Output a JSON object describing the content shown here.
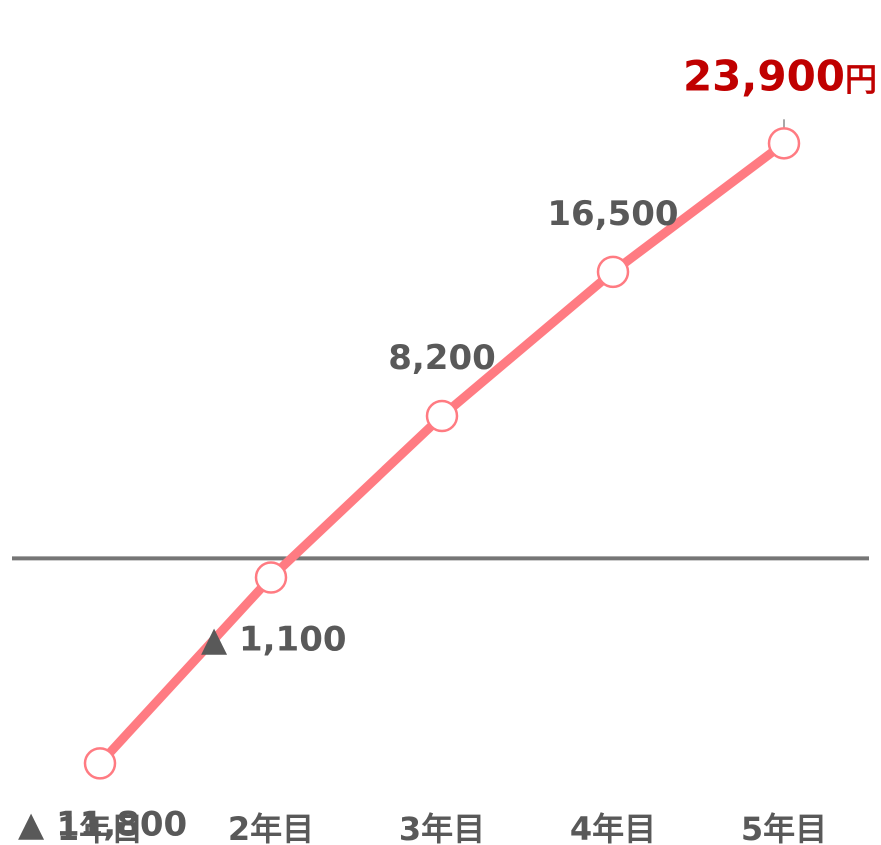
{
  "chart_data": {
    "type": "line",
    "categories": [
      "1年目",
      "2年目",
      "3年目",
      "4年目",
      "5年目"
    ],
    "values": [
      -11800,
      -1100,
      8200,
      16500,
      23900
    ],
    "data_labels": [
      "▲ 11,800",
      "▲ 1,100",
      "8,200",
      "16,500",
      "23,900"
    ],
    "final_unit": "円",
    "ylim": [
      -16500,
      31000
    ],
    "zero_line": true,
    "grid": false,
    "title": "",
    "xlabel": "",
    "ylabel": ""
  },
  "colors": {
    "line": "#ff7b82",
    "marker_fill": "#ffffff",
    "marker_stroke": "#ff7b82",
    "zero_line": "#767676",
    "label": "#595959",
    "final_label": "#c00000"
  }
}
